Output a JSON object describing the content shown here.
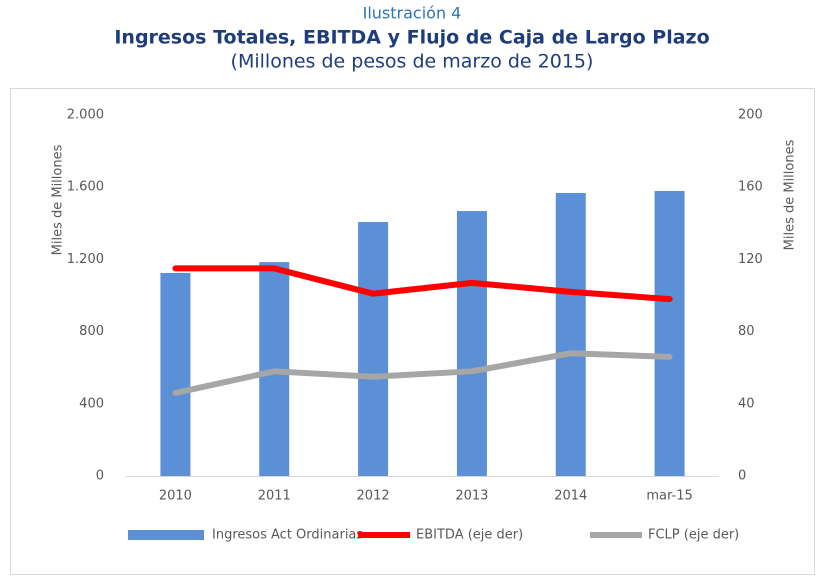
{
  "chart_data": {
    "type": "combo",
    "label": "Ilustración 4",
    "title": "Ingresos Totales, EBITDA y Flujo de Caja de Largo Plazo",
    "subtitle": "(Millones de pesos de marzo de 2015)",
    "ylabel": "Miles de Millones",
    "y2label": "Miles de Millones",
    "categories": [
      "2010",
      "2011",
      "2012",
      "2013",
      "2014",
      "mar-15"
    ],
    "series": [
      {
        "name": "Ingresos Act Ordinarias",
        "type": "bar",
        "color": "#5b8fd6",
        "values": [
          1125,
          1185,
          1407,
          1468,
          1568,
          1579
        ]
      },
      {
        "name": "EBITDA (eje der)",
        "type": "line",
        "axis": "y2",
        "color": "#ff0000",
        "values": [
          115,
          115,
          101,
          107,
          102,
          98
        ]
      },
      {
        "name": "FCLP (eje der)",
        "type": "line",
        "axis": "y2",
        "color": "#a6a6a6",
        "values": [
          46,
          58,
          55,
          58,
          68,
          66
        ]
      }
    ],
    "ylim": [
      0,
      2000
    ],
    "yticks": [
      0,
      400,
      800,
      {
        "value": 1200,
        "label": "1.200"
      },
      {
        "value": 1600,
        "label": "1.600"
      },
      {
        "value": 2000,
        "label": "2.000"
      }
    ],
    "y2lim": [
      0,
      200
    ],
    "y2ticks": [
      0,
      40,
      80,
      120,
      160,
      200
    ],
    "grid": false,
    "legend": "bottom"
  }
}
